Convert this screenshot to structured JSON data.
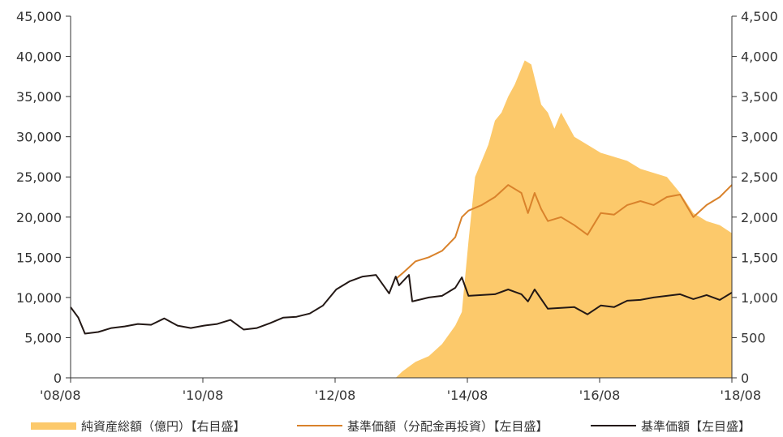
{
  "chart_data": {
    "type": "area",
    "title": "",
    "xlabel": "",
    "ylabel_left": "",
    "ylabel_right": "",
    "x_ticks": [
      "'08/08",
      "'10/08",
      "'12/08",
      "'14/08",
      "'16/08",
      "'18/08"
    ],
    "x_range": [
      2008.583,
      2018.583
    ],
    "y_left_ticks": [
      "0",
      "5,000",
      "10,000",
      "15,000",
      "20,000",
      "25,000",
      "30,000",
      "35,000",
      "40,000",
      "45,000"
    ],
    "y_left_range": [
      0,
      45000
    ],
    "y_right_ticks": [
      "0",
      "500",
      "1,000",
      "1,500",
      "2,000",
      "2,500",
      "3,000",
      "3,500",
      "4,000",
      "4,500"
    ],
    "y_right_range": [
      0,
      4500
    ],
    "grid": false,
    "legend_position": "bottom",
    "colors": {
      "net_assets": "#fcc96b",
      "nav_reinvested": "#d9822b",
      "nav": "#231815",
      "axis": "#333333"
    },
    "series": [
      {
        "name": "純資産総額（億円）【右目盛】",
        "axis": "right",
        "kind": "area",
        "x": [
          2013.5,
          2013.6,
          2013.8,
          2014.0,
          2014.2,
          2014.4,
          2014.5,
          2014.6,
          2014.7,
          2014.8,
          2014.9,
          2015.0,
          2015.1,
          2015.2,
          2015.3,
          2015.45,
          2015.55,
          2015.7,
          2015.8,
          2015.9,
          2016.0,
          2016.2,
          2016.4,
          2016.6,
          2016.8,
          2017.0,
          2017.2,
          2017.4,
          2017.6,
          2017.8,
          2018.0,
          2018.2,
          2018.4,
          2018.583
        ],
        "values": [
          0,
          80,
          200,
          270,
          420,
          650,
          820,
          1700,
          2500,
          2700,
          2900,
          3200,
          3300,
          3500,
          3650,
          3950,
          3900,
          3400,
          3300,
          3100,
          3300,
          3000,
          2900,
          2800,
          2750,
          2700,
          2600,
          2550,
          2500,
          2300,
          2050,
          1950,
          1900,
          1800
        ]
      },
      {
        "name": "基準価額（分配金再投資）【左目盛】",
        "axis": "left",
        "kind": "line",
        "x": [
          2013.5,
          2013.6,
          2013.8,
          2014.0,
          2014.2,
          2014.4,
          2014.5,
          2014.6,
          2014.8,
          2015.0,
          2015.2,
          2015.4,
          2015.5,
          2015.6,
          2015.7,
          2015.8,
          2016.0,
          2016.2,
          2016.4,
          2016.6,
          2016.8,
          2017.0,
          2017.2,
          2017.4,
          2017.6,
          2017.8,
          2018.0,
          2018.2,
          2018.4,
          2018.583
        ],
        "values": [
          12300,
          13000,
          14500,
          15000,
          15800,
          17500,
          20000,
          20800,
          21500,
          22500,
          24000,
          23000,
          20500,
          23000,
          21000,
          19500,
          20000,
          19000,
          17800,
          20500,
          20300,
          21500,
          22000,
          21500,
          22500,
          22800,
          20000,
          21500,
          22500,
          24000
        ]
      },
      {
        "name": "基準価額【左目盛】",
        "axis": "left",
        "kind": "line",
        "x": [
          2008.583,
          2008.7,
          2008.8,
          2009.0,
          2009.2,
          2009.4,
          2009.6,
          2009.8,
          2010.0,
          2010.2,
          2010.4,
          2010.6,
          2010.8,
          2011.0,
          2011.2,
          2011.4,
          2011.6,
          2011.8,
          2012.0,
          2012.2,
          2012.4,
          2012.6,
          2012.8,
          2013.0,
          2013.2,
          2013.4,
          2013.5,
          2013.55,
          2013.7,
          2013.75,
          2013.9,
          2014.0,
          2014.2,
          2014.4,
          2014.5,
          2014.6,
          2014.8,
          2015.0,
          2015.2,
          2015.4,
          2015.5,
          2015.6,
          2015.8,
          2016.0,
          2016.2,
          2016.4,
          2016.6,
          2016.8,
          2017.0,
          2017.2,
          2017.4,
          2017.6,
          2017.8,
          2018.0,
          2018.2,
          2018.4,
          2018.583
        ],
        "values": [
          8800,
          7500,
          5500,
          5700,
          6200,
          6400,
          6700,
          6600,
          7400,
          6500,
          6200,
          6500,
          6700,
          7200,
          6000,
          6200,
          6800,
          7500,
          7600,
          8000,
          9000,
          11000,
          12000,
          12600,
          12800,
          10500,
          12600,
          11500,
          12800,
          9500,
          9800,
          10000,
          10200,
          11200,
          12500,
          10200,
          10300,
          10400,
          11000,
          10400,
          9500,
          11000,
          8600,
          8700,
          8800,
          7900,
          9000,
          8800,
          9600,
          9700,
          10000,
          10200,
          10400,
          9800,
          10300,
          9700,
          10600
        ]
      }
    ]
  }
}
